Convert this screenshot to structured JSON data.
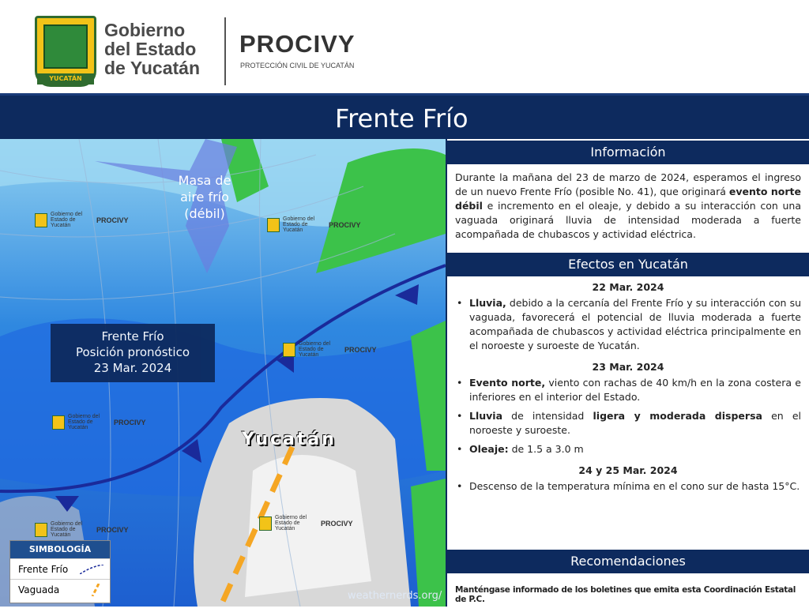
{
  "header": {
    "logo_band_text": "YUCATÁN",
    "gov_name_lines": [
      "Gobierno",
      "del Estado",
      "de Yucatán"
    ],
    "agency": "PROCIVY",
    "agency_subtitle": "PROTECCIÓN CIVIL DE YUCATÁN"
  },
  "title": "Frente Frío",
  "map": {
    "air_mass_label": "Masa de aire frío (débil)",
    "front_label_lines": [
      "Frente Frío",
      "Posición pronóstico",
      "23  Mar. 2024"
    ],
    "region_label": "Yucatán",
    "watermark_gov": "Gobierno del Estado de Yucatán",
    "watermark_agency": "PROCIVY",
    "credit": "weathernerds.org/",
    "legend": {
      "title": "SIMBOLOGÍA",
      "items": [
        {
          "label": "Frente Frío",
          "color": "#1a2a9a"
        },
        {
          "label": "Vaguada",
          "color": "#f5a623"
        }
      ]
    }
  },
  "panel": {
    "info": {
      "heading": "Información",
      "text_parts": [
        "Durante la mañana del 23 de marzo de 2024, esperamos el ingreso de un nuevo Frente Frío (posible No. 41), que originará ",
        "evento norte débil",
        " e incremento en el oleaje, y debido a su interacción con una vaguada originará lluvia de intensidad moderada  a fuerte acompañada de chubascos y actividad eléctrica."
      ]
    },
    "effects": {
      "heading": "Efectos en Yucatán",
      "days": [
        {
          "date": "22 Mar. 2024",
          "items": [
            {
              "bold": "Lluvia,",
              "text": " debido a la cercanía del Frente Frío y su interacción con su vaguada, favorecerá el potencial de lluvia moderada a fuerte acompañada de chubascos y actividad eléctrica principalmente en el noroeste y suroeste de Yucatán."
            }
          ]
        },
        {
          "date": "23 Mar. 2024",
          "items": [
            {
              "bold": "Evento norte,",
              "text": " viento con rachas de 40 km/h en la zona costera e inferiores en el interior del Estado."
            },
            {
              "bold": "Lluvia",
              "text": " de intensidad ",
              "bold2": "ligera y moderada dispersa",
              "text2": " en el noroeste y suroeste."
            },
            {
              "bold": "Oleaje:",
              "text": " de 1.5 a 3.0 m"
            }
          ]
        },
        {
          "date": "24 y 25 Mar. 2024",
          "items": [
            {
              "text": "Descenso de la temperatura mínima  en el cono sur  de hasta 15°C."
            }
          ]
        }
      ]
    },
    "recommendations": {
      "heading": "Recomendaciones",
      "text": "Manténgase informado de los boletines que emita esta Coordinación Estatal de P.C."
    }
  },
  "colors": {
    "navy": "#0d2a5e",
    "front": "#1a2a9a",
    "trough": "#f5a623"
  }
}
